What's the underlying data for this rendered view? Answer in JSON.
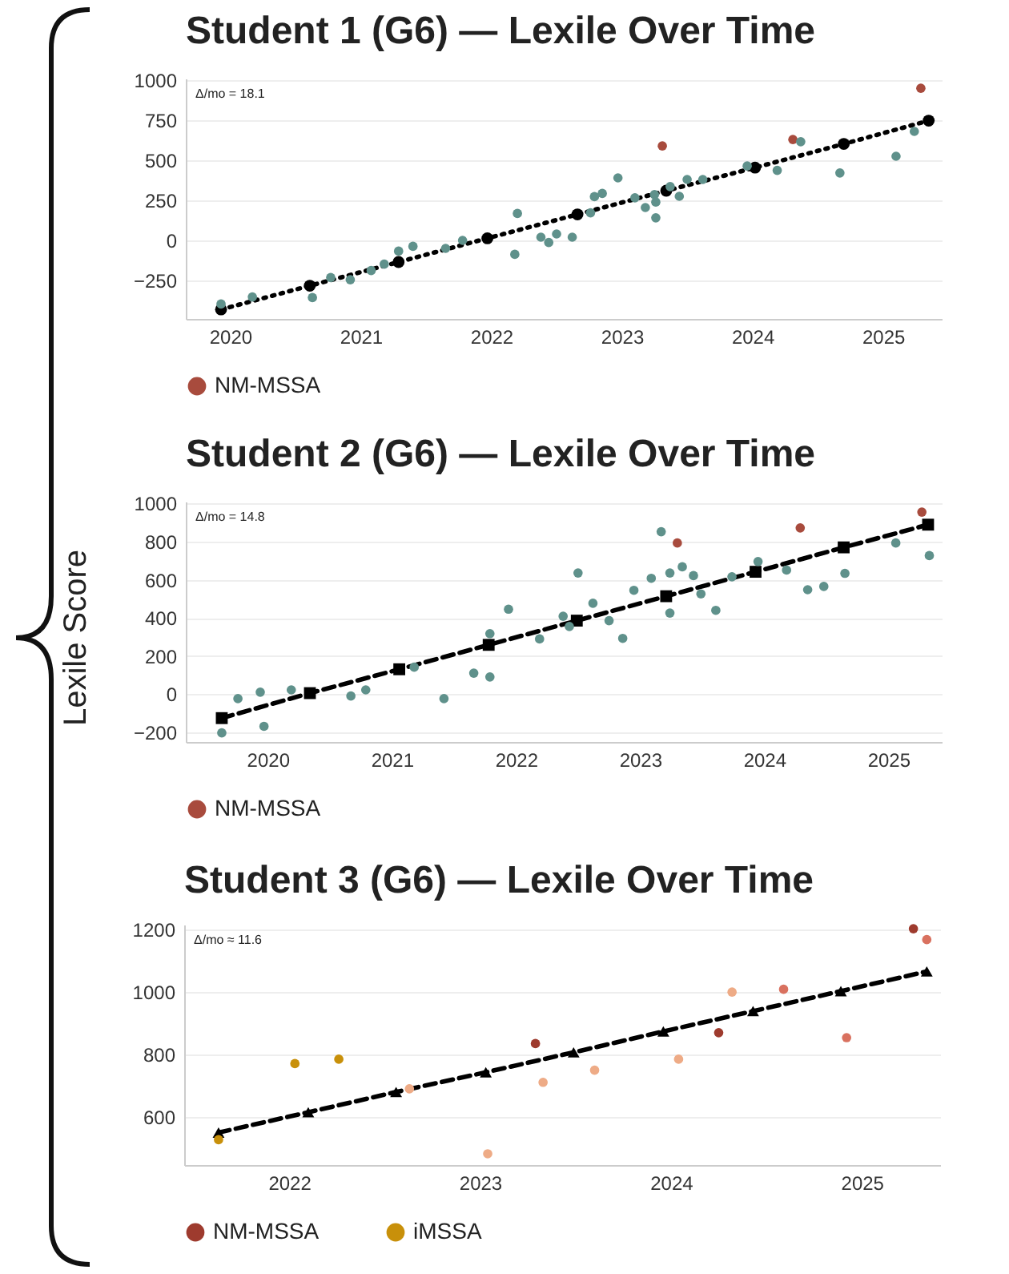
{
  "chart_data": [
    {
      "type": "scatter",
      "title": "Student 1 (G6) — Lexile Over Time",
      "annotations": [
        "Δ/mo = 18.1"
      ],
      "xlim": [
        2019.66,
        2025.45
      ],
      "xticks": [
        2020,
        2021,
        2022,
        2023,
        2024,
        2025
      ],
      "ylim": [
        -490,
        1010
      ],
      "yticks": [
        -250,
        0,
        250,
        500,
        750,
        1000
      ],
      "grid": "y",
      "legend": "bottom",
      "series": [
        {
          "name": "NM-MSSA",
          "color": "#a84b3d",
          "x": [
            2023.31,
            2024.31,
            2025.29
          ],
          "values": [
            589,
            629,
            949
          ]
        },
        {
          "color": "#5f918b",
          "x": [
            2019.93,
            2020.17,
            2020.63,
            2020.77,
            2020.92,
            2021.08,
            2021.18,
            2021.29,
            2021.4,
            2021.65,
            2021.78,
            2022.18,
            2022.2,
            2022.38,
            2022.44,
            2022.5,
            2022.62,
            2022.76,
            2022.79,
            2022.85,
            2022.97,
            2023.1,
            2023.18,
            2023.25,
            2023.26,
            2023.26,
            2023.37,
            2023.44,
            2023.5,
            2023.62,
            2023.96,
            2024.19,
            2024.37,
            2024.67,
            2025.1,
            2025.24
          ],
          "values": [
            -397,
            -353,
            -357,
            -232,
            -246,
            -188,
            -148,
            -67,
            -37,
            -50,
            0,
            -87,
            168,
            20,
            -13,
            40,
            20,
            172,
            273,
            293,
            390,
            266,
            205,
            286,
            239,
            141,
            336,
            275,
            380,
            380,
            464,
            437,
            616,
            421,
            525,
            680
          ]
        },
        {
          "type": "line",
          "color": "#000000",
          "marker": "circle",
          "line_style": "dotted",
          "x": [
            2019.93,
            2020.61,
            2021.29,
            2021.97,
            2022.66,
            2023.34,
            2024.02,
            2024.7,
            2025.35
          ],
          "values": [
            -431,
            -283,
            -135,
            13,
            162,
            310,
            454,
            602,
            747
          ]
        }
      ]
    },
    {
      "type": "scatter",
      "title": "Student 2 (G6) — Lexile Over Time",
      "ylabel": "Lexile Score",
      "annotations": [
        "Δ/mo = 14.8"
      ],
      "xlim": [
        2019.34,
        2025.43
      ],
      "xticks": [
        2020,
        2021,
        2022,
        2023,
        2024,
        2025
      ],
      "ylim": [
        -250,
        1010
      ],
      "yticks": [
        -200,
        0,
        200,
        400,
        600,
        800,
        1000
      ],
      "grid": "y",
      "legend": "bottom",
      "series": [
        {
          "name": "NM-MSSA",
          "color": "#a84b3d",
          "x": [
            2023.3,
            2024.29,
            2025.27
          ],
          "values": [
            793,
            872,
            955
          ]
        },
        {
          "color": "#5f918b",
          "x": [
            2019.63,
            2019.76,
            2019.94,
            2019.97,
            2020.19,
            2020.67,
            2020.79,
            2021.18,
            2021.42,
            2021.66,
            2021.79,
            2021.79,
            2021.94,
            2022.19,
            2022.38,
            2022.43,
            2022.5,
            2022.62,
            2022.75,
            2022.86,
            2022.95,
            2023.09,
            2023.17,
            2023.24,
            2023.24,
            2023.34,
            2023.43,
            2023.49,
            2023.61,
            2023.74,
            2023.95,
            2024.18,
            2024.35,
            2024.48,
            2024.65,
            2025.06,
            2025.33
          ],
          "values": [
            -202,
            -23,
            11,
            -168,
            23,
            -9,
            23,
            142,
            -23,
            111,
            91,
            318,
            446,
            290,
            409,
            355,
            636,
            477,
            386,
            293,
            545,
            608,
            852,
            636,
            426,
            668,
            622,
            526,
            440,
            616,
            696,
            651,
            548,
            565,
            634,
            793,
            727
          ]
        },
        {
          "type": "line",
          "color": "#000000",
          "marker": "square",
          "line_style": "dashed",
          "x": [
            2019.63,
            2020.34,
            2021.06,
            2021.78,
            2022.49,
            2023.21,
            2023.93,
            2024.64,
            2025.32
          ],
          "values": [
            -125,
            6,
            131,
            259,
            386,
            514,
            642,
            770,
            889
          ]
        }
      ]
    },
    {
      "type": "scatter",
      "title": "Student 3 (G6) — Lexile Over Time",
      "annotations": [
        "Δ/mo ≈ 11.6"
      ],
      "xlim": [
        2021.45,
        2025.41
      ],
      "xticks": [
        2022,
        2023,
        2024,
        2025
      ],
      "ylim": [
        445,
        1215
      ],
      "yticks": [
        600,
        800,
        1000,
        1200
      ],
      "grid": "y",
      "legend": "bottom",
      "series": [
        {
          "name": "NM-MSSA",
          "color": "#9e3b2e",
          "x": [
            2023.29,
            2024.25,
            2025.27
          ],
          "values": [
            834,
            869,
            1202
          ]
        },
        {
          "color": "#eeab86",
          "x": [
            2022.63,
            2023.04,
            2023.33,
            2023.6,
            2024.04,
            2024.32
          ],
          "values": [
            689,
            481,
            710,
            749,
            784,
            999
          ]
        },
        {
          "color": "#d9715f",
          "x": [
            2024.59,
            2024.92,
            2025.34
          ],
          "values": [
            1008,
            853,
            1167
          ]
        },
        {
          "name": "iMSSA",
          "color": "#c8900a",
          "x": [
            2021.63,
            2022.03,
            2022.26
          ],
          "values": [
            526,
            770,
            784
          ]
        },
        {
          "type": "line",
          "color": "#000000",
          "marker": "triangle",
          "line_style": "dashed",
          "x": [
            2021.63,
            2022.1,
            2022.56,
            2023.03,
            2023.49,
            2023.96,
            2024.43,
            2024.89,
            2025.34
          ],
          "values": [
            549,
            614,
            679,
            742,
            806,
            873,
            938,
            1002,
            1065
          ]
        }
      ]
    }
  ]
}
